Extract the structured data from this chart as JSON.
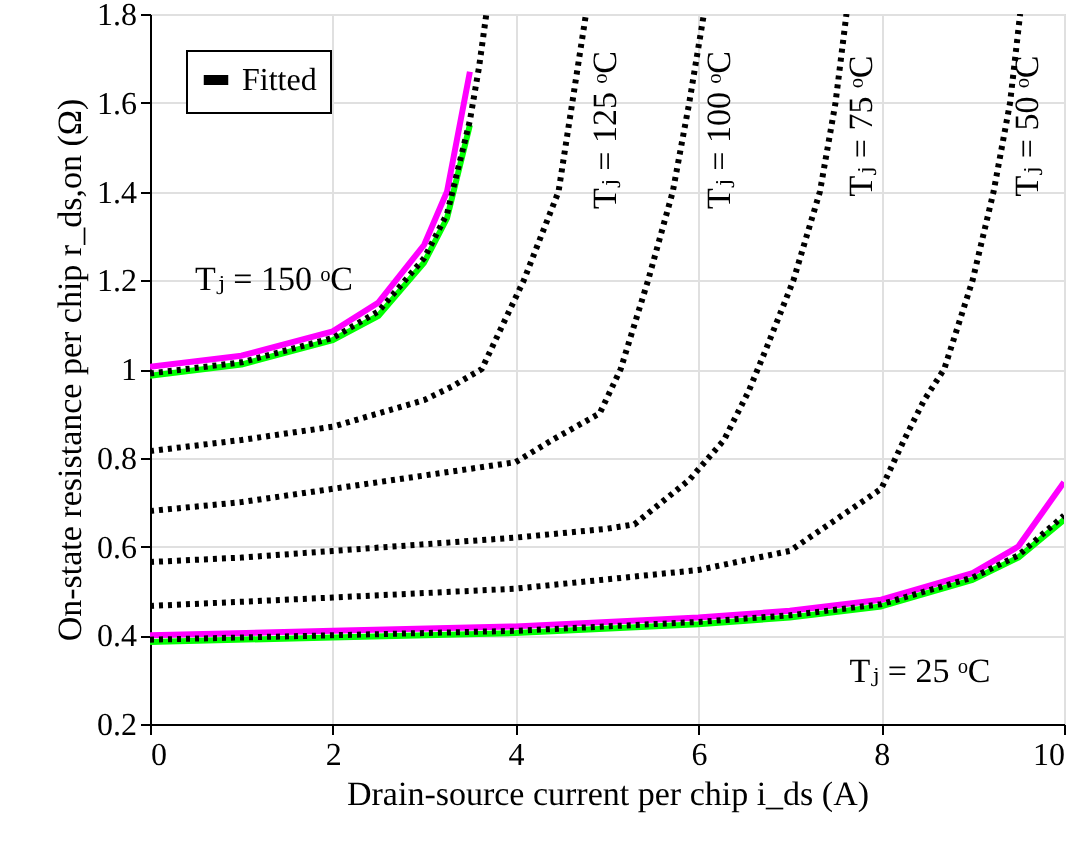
{
  "chart_data": {
    "type": "line",
    "xlabel": "Drain-source current per chip i_ds (A)",
    "ylabel": "On-state resistance per chip r_ds,on (Ω)",
    "xlim": [
      0,
      10
    ],
    "xticks": [
      0,
      2,
      4,
      6,
      8,
      10
    ],
    "ylim": [
      0.2,
      1.8
    ],
    "yticks": [
      0.2,
      0.4,
      0.6,
      0.8,
      1,
      1.2,
      1.4,
      1.6,
      1.8
    ],
    "grid": true,
    "legend": "top left",
    "marker": "none",
    "series": [
      {
        "color": "#00ff00",
        "line_style": "solid",
        "x": [
          0,
          1,
          2,
          2.5,
          3,
          3.25,
          3.5
        ],
        "values": [
          0.985,
          1.01,
          1.065,
          1.12,
          1.24,
          1.34,
          1.55
        ]
      },
      {
        "color": "#ff00ff",
        "line_style": "solid",
        "x": [
          0,
          1,
          2,
          2.5,
          3,
          3.25,
          3.5
        ],
        "values": [
          1.005,
          1.03,
          1.085,
          1.15,
          1.28,
          1.4,
          1.67
        ]
      },
      {
        "color": "#00ff00",
        "line_style": "solid",
        "x": [
          0,
          2,
          4,
          6,
          7,
          8,
          9,
          9.5,
          10
        ],
        "values": [
          0.385,
          0.395,
          0.405,
          0.425,
          0.44,
          0.465,
          0.525,
          0.575,
          0.66
        ]
      },
      {
        "color": "#ff00ff",
        "line_style": "solid",
        "x": [
          0,
          2,
          4,
          6,
          7,
          8,
          9,
          9.5,
          10
        ],
        "values": [
          0.4,
          0.41,
          0.42,
          0.44,
          0.455,
          0.48,
          0.54,
          0.6,
          0.745
        ]
      },
      {
        "name": "Fitted",
        "color": "#000000",
        "line_style": "dotted",
        "x": [
          0,
          1,
          2,
          2.5,
          3,
          3.25,
          3.5,
          3.6,
          3.68
        ],
        "values": [
          0.99,
          1.015,
          1.07,
          1.13,
          1.25,
          1.35,
          1.56,
          1.68,
          1.8
        ]
      },
      {
        "color": "#000000",
        "line_style": "dotted",
        "x": [
          0,
          1,
          2,
          3,
          3.3,
          3.63,
          4.09,
          4.47,
          4.62,
          4.77
        ],
        "values": [
          0.815,
          0.84,
          0.87,
          0.93,
          0.96,
          1.0,
          1.2,
          1.4,
          1.6,
          1.8
        ]
      },
      {
        "color": "#000000",
        "line_style": "dotted",
        "x": [
          0,
          1,
          2,
          3,
          4,
          4.4,
          4.92,
          5.15,
          5.45,
          5.72,
          5.9,
          6.06
        ],
        "values": [
          0.68,
          0.7,
          0.73,
          0.76,
          0.79,
          0.84,
          0.9,
          1.0,
          1.2,
          1.4,
          1.6,
          1.8
        ]
      },
      {
        "color": "#000000",
        "line_style": "dotted",
        "x": [
          0,
          1,
          2,
          3,
          4,
          5,
          5.3,
          5.9,
          6.28,
          6.55,
          6.75,
          7.04,
          7.33,
          7.5,
          7.62
        ],
        "values": [
          0.565,
          0.575,
          0.59,
          0.605,
          0.62,
          0.64,
          0.65,
          0.75,
          0.84,
          0.95,
          1.05,
          1.2,
          1.4,
          1.6,
          1.8
        ]
      },
      {
        "color": "#000000",
        "line_style": "dotted",
        "x": [
          0,
          2,
          4,
          6,
          7,
          8,
          8.25,
          8.47,
          8.69,
          9.0,
          9.23,
          9.41,
          9.52
        ],
        "values": [
          0.466,
          0.485,
          0.505,
          0.547,
          0.59,
          0.73,
          0.84,
          0.93,
          1.0,
          1.2,
          1.4,
          1.6,
          1.8
        ]
      },
      {
        "color": "#000000",
        "line_style": "dotted",
        "x": [
          0,
          2,
          4,
          6,
          7,
          8,
          9,
          9.5,
          10
        ],
        "values": [
          0.39,
          0.4,
          0.41,
          0.43,
          0.445,
          0.47,
          0.53,
          0.58,
          0.67
        ]
      }
    ],
    "annotations": [
      "Tⱼ = 150 ᵒC",
      "Tⱼ = 125 ᵒC",
      "Tⱼ = 100 ᵒC",
      "Tⱼ = 75 ᵒC",
      "Tⱼ = 50 ᵒC",
      "Tⱼ = 25 ᵒC"
    ]
  }
}
